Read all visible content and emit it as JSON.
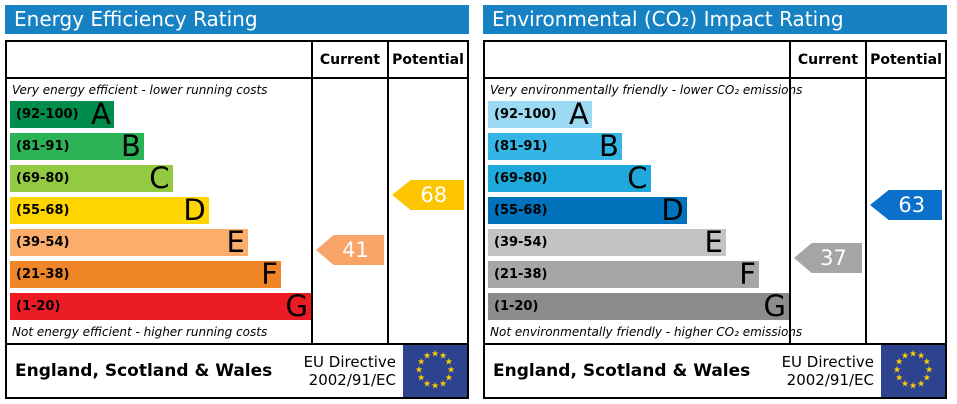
{
  "chart_data": [
    {
      "type": "bar",
      "title": "Energy Efficiency Rating",
      "header_color": "#1681c3",
      "columns": {
        "current": "Current",
        "potential": "Potential"
      },
      "top_note": "Very energy efficient - lower running costs",
      "bottom_note": "Not energy efficient - higher running costs",
      "bands": [
        {
          "letter": "A",
          "range": "(92-100)",
          "min": 92,
          "max": 100,
          "color": "#008c4a",
          "width_pct": 34.5
        },
        {
          "letter": "B",
          "range": "(81-91)",
          "min": 81,
          "max": 91,
          "color": "#2db357",
          "width_pct": 44.5
        },
        {
          "letter": "C",
          "range": "(69-80)",
          "min": 69,
          "max": 80,
          "color": "#92cb41",
          "width_pct": 54
        },
        {
          "letter": "D",
          "range": "(55-68)",
          "min": 55,
          "max": 68,
          "color": "#ffd500",
          "width_pct": 66
        },
        {
          "letter": "E",
          "range": "(39-54)",
          "min": 39,
          "max": 54,
          "color": "#fbad6c",
          "width_pct": 79
        },
        {
          "letter": "F",
          "range": "(21-38)",
          "min": 21,
          "max": 38,
          "color": "#f08527",
          "width_pct": 90
        },
        {
          "letter": "G",
          "range": "(1-20)",
          "min": 1,
          "max": 20,
          "color": "#ec1c24",
          "width_pct": 100
        }
      ],
      "current": {
        "value": 41,
        "band": "E",
        "color": "#f9a56a"
      },
      "potential": {
        "value": 68,
        "band": "D",
        "color": "#fcc500"
      },
      "footer": {
        "region": "England, Scotland & Wales",
        "directive_line1": "EU Directive",
        "directive_line2": "2002/91/EC",
        "flag_color": "#2d4390",
        "star_color": "#ffcc00"
      }
    },
    {
      "type": "bar",
      "title": "Environmental (CO₂) Impact Rating",
      "header_color": "#1681c3",
      "columns": {
        "current": "Current",
        "potential": "Potential"
      },
      "top_note": "Very environmentally friendly - lower CO₂ emissions",
      "bottom_note": "Not environmentally friendly - higher CO₂ emissions",
      "bands": [
        {
          "letter": "A",
          "range": "(92-100)",
          "min": 92,
          "max": 100,
          "color": "#9bdaf2",
          "width_pct": 34.5
        },
        {
          "letter": "B",
          "range": "(81-91)",
          "min": 81,
          "max": 91,
          "color": "#35b4e6",
          "width_pct": 44.5
        },
        {
          "letter": "C",
          "range": "(69-80)",
          "min": 69,
          "max": 80,
          "color": "#1fa8dc",
          "width_pct": 54
        },
        {
          "letter": "D",
          "range": "(55-68)",
          "min": 55,
          "max": 68,
          "color": "#0072bc",
          "width_pct": 66
        },
        {
          "letter": "E",
          "range": "(39-54)",
          "min": 39,
          "max": 54,
          "color": "#c3c3c3",
          "width_pct": 79
        },
        {
          "letter": "F",
          "range": "(21-38)",
          "min": 21,
          "max": 38,
          "color": "#a6a6a6",
          "width_pct": 90
        },
        {
          "letter": "G",
          "range": "(1-20)",
          "min": 1,
          "max": 20,
          "color": "#8c8c8c",
          "width_pct": 100
        }
      ],
      "current": {
        "value": 37,
        "band": "F",
        "color": "#a5a5a5"
      },
      "potential": {
        "value": 63,
        "band": "D",
        "color": "#0b70c9"
      },
      "footer": {
        "region": "England, Scotland & Wales",
        "directive_line1": "EU Directive",
        "directive_line2": "2002/91/EC",
        "flag_color": "#2d4390",
        "star_color": "#ffcc00"
      }
    }
  ]
}
